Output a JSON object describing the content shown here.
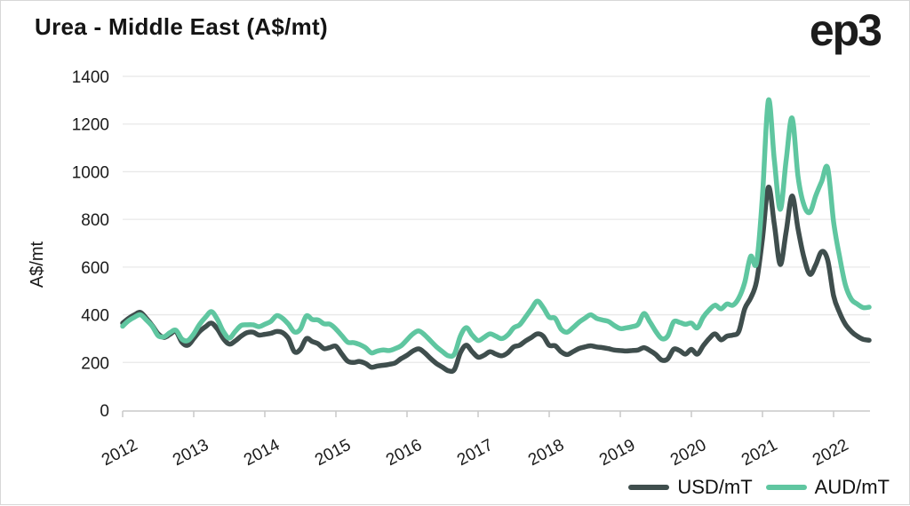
{
  "header": {
    "title": "Urea - Middle East (A$/mt)",
    "logo": "ep3"
  },
  "chart_data": {
    "type": "line",
    "title": "Urea - Middle East (A$/mt)",
    "xlabel": "",
    "ylabel": "A$/mt",
    "ylim": [
      0,
      1400
    ],
    "yticks": [
      0,
      200,
      400,
      600,
      800,
      1000,
      1200,
      1400
    ],
    "x_tick_labels": [
      "2012",
      "2013",
      "2014",
      "2015",
      "2016",
      "2017",
      "2018",
      "2019",
      "2020",
      "2021",
      "2022"
    ],
    "x_note": "monthly data points, Jan 2012 through Jul 2022",
    "grid": "horizontal",
    "legend_position": "bottom-right",
    "series": [
      {
        "name": "USD/mT",
        "color": "#3F4E4D",
        "values": [
          365,
          385,
          400,
          410,
          385,
          355,
          320,
          305,
          318,
          330,
          285,
          272,
          300,
          330,
          350,
          365,
          340,
          300,
          277,
          290,
          310,
          325,
          327,
          315,
          318,
          322,
          330,
          325,
          300,
          245,
          255,
          300,
          288,
          278,
          258,
          263,
          268,
          235,
          205,
          200,
          204,
          196,
          180,
          185,
          188,
          192,
          198,
          216,
          230,
          248,
          257,
          240,
          216,
          195,
          180,
          165,
          170,
          240,
          272,
          245,
          222,
          230,
          245,
          235,
          228,
          240,
          265,
          272,
          290,
          305,
          320,
          310,
          272,
          270,
          245,
          233,
          245,
          258,
          265,
          270,
          265,
          262,
          258,
          252,
          250,
          248,
          250,
          252,
          262,
          250,
          233,
          210,
          215,
          255,
          250,
          235,
          255,
          235,
          270,
          300,
          320,
          295,
          310,
          315,
          330,
          425,
          470,
          540,
          720,
          935,
          780,
          611,
          750,
          898,
          760,
          640,
          570,
          610,
          665,
          630,
          480,
          410,
          360,
          330,
          310,
          297,
          293
        ]
      },
      {
        "name": "AUD/mT",
        "color": "#5FC6A0",
        "values": [
          352,
          375,
          390,
          400,
          378,
          352,
          312,
          308,
          325,
          335,
          298,
          292,
          320,
          360,
          390,
          413,
          380,
          330,
          302,
          330,
          355,
          358,
          358,
          350,
          360,
          372,
          396,
          385,
          360,
          328,
          340,
          395,
          380,
          378,
          362,
          360,
          340,
          312,
          285,
          283,
          275,
          262,
          240,
          248,
          252,
          250,
          258,
          270,
          295,
          320,
          332,
          315,
          290,
          265,
          245,
          228,
          235,
          310,
          346,
          315,
          292,
          305,
          320,
          310,
          300,
          315,
          345,
          358,
          390,
          425,
          457,
          430,
          390,
          385,
          340,
          327,
          345,
          368,
          385,
          400,
          385,
          378,
          372,
          355,
          342,
          345,
          350,
          360,
          405,
          370,
          330,
          300,
          310,
          370,
          368,
          360,
          365,
          345,
          390,
          420,
          440,
          425,
          445,
          440,
          470,
          535,
          645,
          618,
          900,
          1300,
          1050,
          842,
          1050,
          1225,
          980,
          860,
          830,
          900,
          960,
          1016,
          790,
          645,
          525,
          465,
          445,
          430,
          432
        ]
      }
    ],
    "colors": {
      "grid": "#e8e8e8",
      "axis": "#c8c8c8",
      "tick_text": "#1a1a1a"
    }
  }
}
